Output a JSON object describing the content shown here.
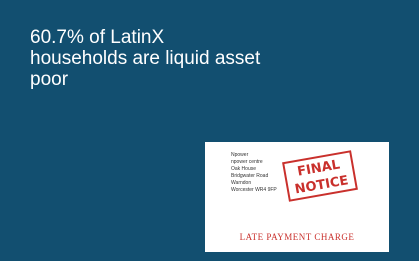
{
  "headline": "60.7% of LatinX households are liquid asset poor",
  "image": {
    "address": [
      "Npower",
      "npower centre",
      "Oak House",
      "Bridgwater Road",
      "Warndon",
      "Worcester WR4 9FP"
    ],
    "stamp": [
      "FINAL",
      "NOTICE"
    ],
    "footer": "LATE PAYMENT CHARGE"
  }
}
